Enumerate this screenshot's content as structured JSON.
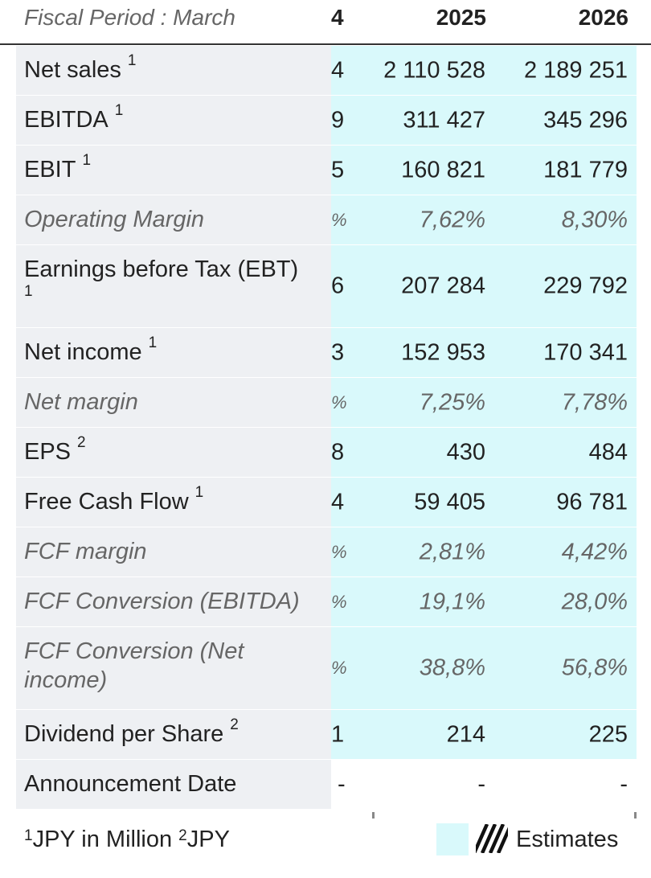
{
  "header": {
    "period_label": "Fiscal Period : March",
    "col0": "4",
    "col1": "2025",
    "col2": "2026"
  },
  "rows": [
    {
      "label": "Net sales",
      "sup": "1",
      "c0": "4",
      "c1": "2 110 528",
      "c2": "2 189 251"
    },
    {
      "label": "EBITDA",
      "sup": "1",
      "c0": "9",
      "c1": "311 427",
      "c2": "345 296"
    },
    {
      "label": "EBIT",
      "sup": "1",
      "c0": "5",
      "c1": "160 821",
      "c2": "181 779"
    },
    {
      "label": "Operating Margin",
      "c0": "%",
      "c1": "7,62%",
      "c2": "8,30%"
    },
    {
      "label": "Earnings before Tax (EBT)",
      "sup": "1",
      "c0": "6",
      "c1": "207 284",
      "c2": "229 792"
    },
    {
      "label": "Net income",
      "sup": "1",
      "c0": "3",
      "c1": "152 953",
      "c2": "170 341"
    },
    {
      "label": "Net margin",
      "c0": "%",
      "c1": "7,25%",
      "c2": "7,78%"
    },
    {
      "label": "EPS",
      "sup": "2",
      "c0": "8",
      "c1": "430",
      "c2": "484"
    },
    {
      "label": "Free Cash Flow",
      "sup": "1",
      "c0": "4",
      "c1": "59 405",
      "c2": "96 781"
    },
    {
      "label": "FCF margin",
      "c0": "%",
      "c1": "2,81%",
      "c2": "4,42%"
    },
    {
      "label": "FCF Conversion (EBITDA)",
      "c0": "%",
      "c1": "19,1%",
      "c2": "28,0%"
    },
    {
      "label": "FCF Conversion (Net income)",
      "c0": "%",
      "c1": "38,8%",
      "c2": "56,8%"
    },
    {
      "label": "Dividend per Share",
      "sup": "2",
      "c0": "1",
      "c1": "214",
      "c2": "225"
    },
    {
      "label": "Announcement Date",
      "c0": "-",
      "c1": "-",
      "c2": "-"
    }
  ],
  "footer": {
    "note1_sup": "1",
    "note1_text": "JPY in Million ",
    "note2_sup": "2",
    "note2_text": "JPY",
    "legend_label": "Estimates"
  },
  "colors": {
    "estimate_fill": "#d9f9fb",
    "label_fill": "#eef0f3"
  }
}
